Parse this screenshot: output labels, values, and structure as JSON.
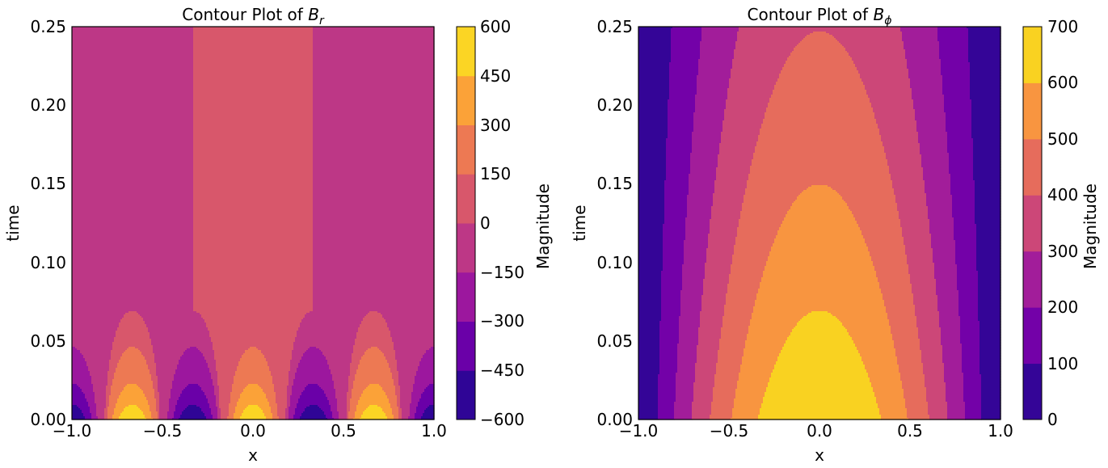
{
  "chart_data": [
    {
      "type": "contour",
      "title": "Contour Plot of ",
      "title_symbol": "B",
      "title_subscript": "r",
      "xlabel": "x",
      "ylabel": "time",
      "xlim": [
        -1.0,
        1.0
      ],
      "ylim": [
        0.0,
        0.25
      ],
      "xticks": [
        "−1.0",
        "−0.5",
        "0.0",
        "0.5",
        "1.0"
      ],
      "yticks": [
        "0.00",
        "0.05",
        "0.10",
        "0.15",
        "0.20",
        "0.25"
      ],
      "field_model": "B_r(x,t) = 600·cos(3πx)·exp(−30t) (saturating to 0 after the early-time transient); pieces separated at x = ±1/3",
      "levels": [
        -600,
        -450,
        -300,
        -150,
        0,
        150,
        300,
        450,
        600
      ],
      "colormap": "plasma",
      "colors": [
        "#2f0596",
        "#6a00a8",
        "#9c179e",
        "#bd3786",
        "#d8576b",
        "#ed7953",
        "#fba238",
        "#fbd524"
      ],
      "colorbar": {
        "label": "Magnitude",
        "ticks": [
          "600",
          "450",
          "300",
          "150",
          "0",
          "−150",
          "−300",
          "−450",
          "−600"
        ],
        "tick_values": [
          600,
          450,
          300,
          150,
          0,
          -150,
          -300,
          -450,
          -600
        ]
      }
    },
    {
      "type": "contour",
      "title": "Contour Plot of ",
      "title_symbol": "B",
      "title_subscript": "ϕ",
      "xlabel": "x",
      "ylabel": "time",
      "xlim": [
        -1.0,
        1.0
      ],
      "ylim": [
        0.0,
        0.25
      ],
      "xticks": [
        "−1.0",
        "−0.5",
        "0.0",
        "0.5",
        "1.0"
      ],
      "yticks": [
        "0.00",
        "0.05",
        "0.10",
        "0.15",
        "0.20",
        "0.25"
      ],
      "field_model": "B_phi(x,t) ≈ 700·cos(πx/2)·exp(−2t)",
      "levels": [
        0,
        100,
        200,
        300,
        400,
        500,
        600,
        700
      ],
      "colormap": "plasma",
      "colors": [
        "#340597",
        "#7301a8",
        "#a21d9a",
        "#cc4778",
        "#e66c5c",
        "#f89540",
        "#f9d221"
      ],
      "colorbar": {
        "label": "Magnitude",
        "ticks": [
          "700",
          "600",
          "500",
          "400",
          "300",
          "200",
          "100",
          "0"
        ],
        "tick_values": [
          700,
          600,
          500,
          400,
          300,
          200,
          100,
          0
        ]
      }
    }
  ]
}
